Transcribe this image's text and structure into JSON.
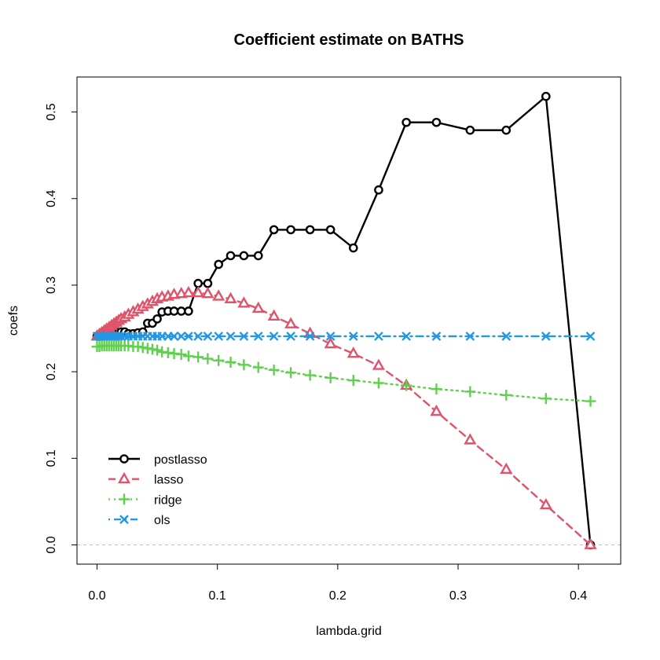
{
  "chart_data": {
    "type": "line",
    "title": "Coefficient estimate on BATHS",
    "xlabel": "lambda.grid",
    "ylabel": "coefs",
    "xlim": [
      0,
      0.41
    ],
    "ylim": [
      0,
      0.52
    ],
    "x_ticks": [
      "0.0",
      "0.1",
      "0.2",
      "0.3",
      "0.4"
    ],
    "y_ticks": [
      "0.0",
      "0.1",
      "0.2",
      "0.3",
      "0.4",
      "0.5"
    ],
    "reference_line": {
      "y": 0,
      "style": "dashed",
      "color": "#bebebe"
    },
    "legend_position": "bottom-left",
    "series": [
      {
        "name": "postlasso",
        "color": "#000000",
        "marker": "circle",
        "line_style": "solid",
        "points": [
          [
            0.0,
            0.241
          ],
          [
            0.002,
            0.241
          ],
          [
            0.004,
            0.241
          ],
          [
            0.006,
            0.242
          ],
          [
            0.008,
            0.242
          ],
          [
            0.01,
            0.243
          ],
          [
            0.012,
            0.244
          ],
          [
            0.014,
            0.245
          ],
          [
            0.016,
            0.246
          ],
          [
            0.018,
            0.246
          ],
          [
            0.02,
            0.246
          ],
          [
            0.023,
            0.246
          ],
          [
            0.026,
            0.244
          ],
          [
            0.03,
            0.244
          ],
          [
            0.034,
            0.245
          ],
          [
            0.038,
            0.246
          ],
          [
            0.042,
            0.256
          ],
          [
            0.046,
            0.256
          ],
          [
            0.05,
            0.261
          ],
          [
            0.054,
            0.269
          ],
          [
            0.059,
            0.27
          ],
          [
            0.064,
            0.27
          ],
          [
            0.07,
            0.27
          ],
          [
            0.076,
            0.27
          ],
          [
            0.084,
            0.302
          ],
          [
            0.092,
            0.302
          ],
          [
            0.101,
            0.324
          ],
          [
            0.111,
            0.334
          ],
          [
            0.122,
            0.334
          ],
          [
            0.134,
            0.334
          ],
          [
            0.147,
            0.364
          ],
          [
            0.161,
            0.364
          ],
          [
            0.177,
            0.364
          ],
          [
            0.194,
            0.364
          ],
          [
            0.213,
            0.343
          ],
          [
            0.234,
            0.41
          ],
          [
            0.257,
            0.488
          ],
          [
            0.282,
            0.488
          ],
          [
            0.31,
            0.479
          ],
          [
            0.34,
            0.479
          ],
          [
            0.373,
            0.518
          ],
          [
            0.41,
            0.0
          ]
        ]
      },
      {
        "name": "lasso",
        "color": "#DF536B",
        "marker": "triangle",
        "line_style": "dashed",
        "points": [
          [
            0.0,
            0.241
          ],
          [
            0.002,
            0.243
          ],
          [
            0.004,
            0.245
          ],
          [
            0.006,
            0.247
          ],
          [
            0.008,
            0.249
          ],
          [
            0.01,
            0.251
          ],
          [
            0.012,
            0.253
          ],
          [
            0.014,
            0.255
          ],
          [
            0.016,
            0.257
          ],
          [
            0.018,
            0.259
          ],
          [
            0.02,
            0.261
          ],
          [
            0.023,
            0.263
          ],
          [
            0.026,
            0.266
          ],
          [
            0.03,
            0.269
          ],
          [
            0.034,
            0.272
          ],
          [
            0.038,
            0.275
          ],
          [
            0.042,
            0.278
          ],
          [
            0.046,
            0.281
          ],
          [
            0.05,
            0.284
          ],
          [
            0.054,
            0.286
          ],
          [
            0.059,
            0.287
          ],
          [
            0.064,
            0.289
          ],
          [
            0.07,
            0.29
          ],
          [
            0.076,
            0.291
          ],
          [
            0.084,
            0.291
          ],
          [
            0.092,
            0.29
          ],
          [
            0.101,
            0.287
          ],
          [
            0.111,
            0.284
          ],
          [
            0.122,
            0.279
          ],
          [
            0.134,
            0.273
          ],
          [
            0.147,
            0.264
          ],
          [
            0.161,
            0.255
          ],
          [
            0.177,
            0.244
          ],
          [
            0.194,
            0.232
          ],
          [
            0.213,
            0.221
          ],
          [
            0.234,
            0.207
          ],
          [
            0.257,
            0.184
          ],
          [
            0.282,
            0.154
          ],
          [
            0.31,
            0.121
          ],
          [
            0.34,
            0.087
          ],
          [
            0.373,
            0.046
          ],
          [
            0.41,
            0.0
          ]
        ]
      },
      {
        "name": "ridge",
        "color": "#61D04F",
        "marker": "plus",
        "line_style": "dotted",
        "points": [
          [
            0.0,
            0.229
          ],
          [
            0.002,
            0.229
          ],
          [
            0.004,
            0.23
          ],
          [
            0.006,
            0.23
          ],
          [
            0.008,
            0.23
          ],
          [
            0.01,
            0.23
          ],
          [
            0.012,
            0.23
          ],
          [
            0.014,
            0.23
          ],
          [
            0.016,
            0.23
          ],
          [
            0.018,
            0.23
          ],
          [
            0.02,
            0.23
          ],
          [
            0.023,
            0.23
          ],
          [
            0.026,
            0.23
          ],
          [
            0.03,
            0.229
          ],
          [
            0.034,
            0.229
          ],
          [
            0.038,
            0.228
          ],
          [
            0.042,
            0.227
          ],
          [
            0.046,
            0.226
          ],
          [
            0.05,
            0.225
          ],
          [
            0.054,
            0.223
          ],
          [
            0.059,
            0.222
          ],
          [
            0.064,
            0.221
          ],
          [
            0.07,
            0.22
          ],
          [
            0.076,
            0.218
          ],
          [
            0.084,
            0.217
          ],
          [
            0.092,
            0.215
          ],
          [
            0.101,
            0.213
          ],
          [
            0.111,
            0.211
          ],
          [
            0.122,
            0.208
          ],
          [
            0.134,
            0.205
          ],
          [
            0.147,
            0.202
          ],
          [
            0.161,
            0.199
          ],
          [
            0.177,
            0.196
          ],
          [
            0.194,
            0.193
          ],
          [
            0.213,
            0.19
          ],
          [
            0.234,
            0.187
          ],
          [
            0.257,
            0.184
          ],
          [
            0.282,
            0.18
          ],
          [
            0.31,
            0.177
          ],
          [
            0.34,
            0.173
          ],
          [
            0.373,
            0.169
          ],
          [
            0.41,
            0.166
          ]
        ]
      },
      {
        "name": "ols",
        "color": "#2297E6",
        "marker": "x",
        "line_style": "dotdash",
        "points": [
          [
            0.0,
            0.241
          ],
          [
            0.002,
            0.241
          ],
          [
            0.004,
            0.241
          ],
          [
            0.006,
            0.241
          ],
          [
            0.008,
            0.241
          ],
          [
            0.01,
            0.241
          ],
          [
            0.012,
            0.241
          ],
          [
            0.014,
            0.241
          ],
          [
            0.016,
            0.241
          ],
          [
            0.018,
            0.241
          ],
          [
            0.02,
            0.241
          ],
          [
            0.023,
            0.241
          ],
          [
            0.026,
            0.241
          ],
          [
            0.03,
            0.241
          ],
          [
            0.034,
            0.241
          ],
          [
            0.038,
            0.241
          ],
          [
            0.042,
            0.241
          ],
          [
            0.046,
            0.241
          ],
          [
            0.05,
            0.241
          ],
          [
            0.054,
            0.241
          ],
          [
            0.059,
            0.241
          ],
          [
            0.064,
            0.241
          ],
          [
            0.07,
            0.241
          ],
          [
            0.076,
            0.241
          ],
          [
            0.084,
            0.241
          ],
          [
            0.092,
            0.241
          ],
          [
            0.101,
            0.241
          ],
          [
            0.111,
            0.241
          ],
          [
            0.122,
            0.241
          ],
          [
            0.134,
            0.241
          ],
          [
            0.147,
            0.241
          ],
          [
            0.161,
            0.241
          ],
          [
            0.177,
            0.241
          ],
          [
            0.194,
            0.241
          ],
          [
            0.213,
            0.241
          ],
          [
            0.234,
            0.241
          ],
          [
            0.257,
            0.241
          ],
          [
            0.282,
            0.241
          ],
          [
            0.31,
            0.241
          ],
          [
            0.34,
            0.241
          ],
          [
            0.373,
            0.241
          ],
          [
            0.41,
            0.241
          ]
        ]
      }
    ]
  }
}
